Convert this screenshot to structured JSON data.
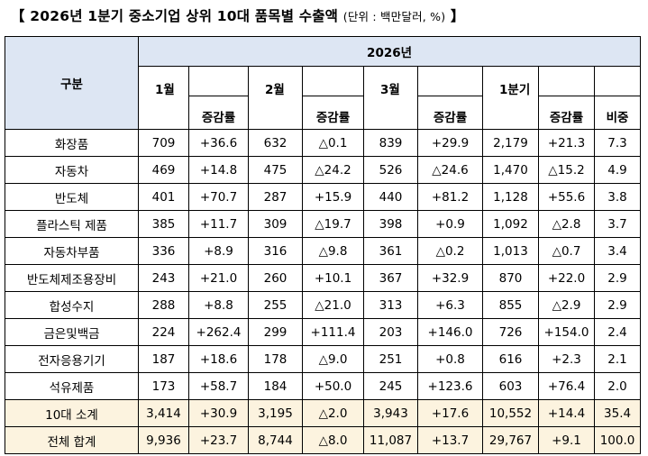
{
  "title": {
    "main": "【 2026년 1분기 중소기업 상위 10대 품목별 수출액",
    "unit": "(단위 : 백만달러, %)",
    "close": "】"
  },
  "table": {
    "header": {
      "category": "구분",
      "year": "2026년",
      "months": [
        "1월",
        "2월",
        "3월",
        "1분기"
      ],
      "rate": "증감률",
      "share": "비중"
    },
    "rows": [
      {
        "name": "화장품",
        "m1": "709",
        "r1": "+36.6",
        "m2": "632",
        "r2": "△0.1",
        "m3": "839",
        "r3": "+29.9",
        "q": "2,179",
        "rq": "+21.3",
        "s": "7.3"
      },
      {
        "name": "자동차",
        "m1": "469",
        "r1": "+14.8",
        "m2": "475",
        "r2": "△24.2",
        "m3": "526",
        "r3": "△24.6",
        "q": "1,470",
        "rq": "△15.2",
        "s": "4.9"
      },
      {
        "name": "반도체",
        "m1": "401",
        "r1": "+70.7",
        "m2": "287",
        "r2": "+15.9",
        "m3": "440",
        "r3": "+81.2",
        "q": "1,128",
        "rq": "+55.6",
        "s": "3.8"
      },
      {
        "name": "플라스틱 제품",
        "m1": "385",
        "r1": "+11.7",
        "m2": "309",
        "r2": "△19.7",
        "m3": "398",
        "r3": "+0.9",
        "q": "1,092",
        "rq": "△2.8",
        "s": "3.7"
      },
      {
        "name": "자동차부품",
        "m1": "336",
        "r1": "+8.9",
        "m2": "316",
        "r2": "△9.8",
        "m3": "361",
        "r3": "△0.2",
        "q": "1,013",
        "rq": "△0.7",
        "s": "3.4"
      },
      {
        "name": "반도체제조용장비",
        "m1": "243",
        "r1": "+21.0",
        "m2": "260",
        "r2": "+10.1",
        "m3": "367",
        "r3": "+32.9",
        "q": "870",
        "rq": "+22.0",
        "s": "2.9"
      },
      {
        "name": "합성수지",
        "m1": "288",
        "r1": "+8.8",
        "m2": "255",
        "r2": "△21.0",
        "m3": "313",
        "r3": "+6.3",
        "q": "855",
        "rq": "△2.9",
        "s": "2.9"
      },
      {
        "name": "금은및백금",
        "m1": "224",
        "r1": "+262.4",
        "m2": "299",
        "r2": "+111.4",
        "m3": "203",
        "r3": "+146.0",
        "q": "726",
        "rq": "+154.0",
        "s": "2.4"
      },
      {
        "name": "전자응용기기",
        "m1": "187",
        "r1": "+18.6",
        "m2": "178",
        "r2": "△9.0",
        "m3": "251",
        "r3": "+0.8",
        "q": "616",
        "rq": "+2.3",
        "s": "2.1"
      },
      {
        "name": "석유제품",
        "m1": "173",
        "r1": "+58.7",
        "m2": "184",
        "r2": "+50.0",
        "m3": "245",
        "r3": "+123.6",
        "q": "603",
        "rq": "+76.4",
        "s": "2.0"
      }
    ],
    "totals": [
      {
        "name": "10대 소계",
        "m1": "3,414",
        "r1": "+30.9",
        "m2": "3,195",
        "r2": "△2.0",
        "m3": "3,943",
        "r3": "+17.6",
        "q": "10,552",
        "rq": "+14.4",
        "s": "35.4"
      },
      {
        "name": "전체 합계",
        "m1": "9,936",
        "r1": "+23.7",
        "m2": "8,744",
        "r2": "△8.0",
        "m3": "11,087",
        "r3": "+13.7",
        "q": "29,767",
        "rq": "+9.1",
        "s": "100.0"
      }
    ]
  }
}
